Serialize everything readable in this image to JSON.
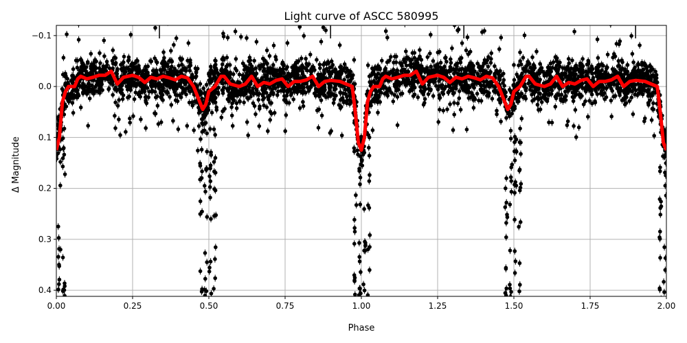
{
  "chart_data": {
    "type": "scatter",
    "title": "Light curve of ASCC 580995",
    "xlabel": "Phase",
    "ylabel": "Δ Magnitude",
    "xlim": [
      0,
      2
    ],
    "ylim": [
      0.412,
      -0.12
    ],
    "y_inverted": true,
    "grid": true,
    "xticks": [
      "0.00",
      "0.25",
      "0.50",
      "0.75",
      "1.00",
      "1.25",
      "1.50",
      "1.75",
      "2.00"
    ],
    "xtick_values": [
      0,
      0.25,
      0.5,
      0.75,
      1.0,
      1.25,
      1.5,
      1.75,
      2.0
    ],
    "yticks": [
      "−0.1",
      "0.0",
      "0.1",
      "0.2",
      "0.3",
      "0.4"
    ],
    "ytick_values": [
      -0.1,
      0.0,
      0.1,
      0.2,
      0.3,
      0.4
    ],
    "marker_lines_phase": [
      0.338,
      0.899,
      1.336,
      1.899
    ],
    "series": [
      {
        "type": "scatter-errorbar",
        "color": "#000000",
        "description_noise_mag": 0.04,
        "eclipse_phases": [
          0.0,
          0.495,
          1.0,
          1.495,
          2.0
        ]
      },
      {
        "type": "line",
        "color": "#ff0000",
        "period_repeat": 1.0,
        "x": [
          0.0,
          0.01,
          0.02,
          0.03,
          0.04,
          0.06,
          0.07,
          0.08,
          0.1,
          0.12,
          0.14,
          0.16,
          0.18,
          0.2,
          0.22,
          0.25,
          0.27,
          0.29,
          0.31,
          0.33,
          0.35,
          0.37,
          0.39,
          0.41,
          0.43,
          0.45,
          0.47,
          0.48,
          0.49,
          0.5,
          0.52,
          0.54,
          0.55,
          0.57,
          0.6,
          0.62,
          0.64,
          0.66,
          0.68,
          0.7,
          0.72,
          0.74,
          0.76,
          0.78,
          0.8,
          0.82,
          0.84,
          0.86,
          0.88,
          0.9,
          0.93,
          0.95,
          0.97,
          0.98,
          0.99,
          1.0
        ],
        "y": [
          0.125,
          0.1,
          0.03,
          0.01,
          0.0,
          0.0,
          -0.015,
          -0.02,
          -0.015,
          -0.018,
          -0.022,
          -0.022,
          -0.03,
          -0.005,
          -0.018,
          -0.022,
          -0.018,
          -0.008,
          -0.018,
          -0.015,
          -0.02,
          -0.017,
          -0.013,
          -0.02,
          -0.017,
          0.0,
          0.03,
          0.045,
          0.035,
          0.01,
          0.0,
          -0.02,
          -0.02,
          -0.005,
          0.0,
          -0.005,
          -0.02,
          0.0,
          -0.008,
          -0.005,
          -0.012,
          -0.015,
          0.0,
          -0.01,
          -0.01,
          -0.013,
          -0.02,
          0.0,
          -0.01,
          -0.012,
          -0.01,
          -0.005,
          0.0,
          0.05,
          0.11,
          0.125
        ]
      }
    ]
  }
}
